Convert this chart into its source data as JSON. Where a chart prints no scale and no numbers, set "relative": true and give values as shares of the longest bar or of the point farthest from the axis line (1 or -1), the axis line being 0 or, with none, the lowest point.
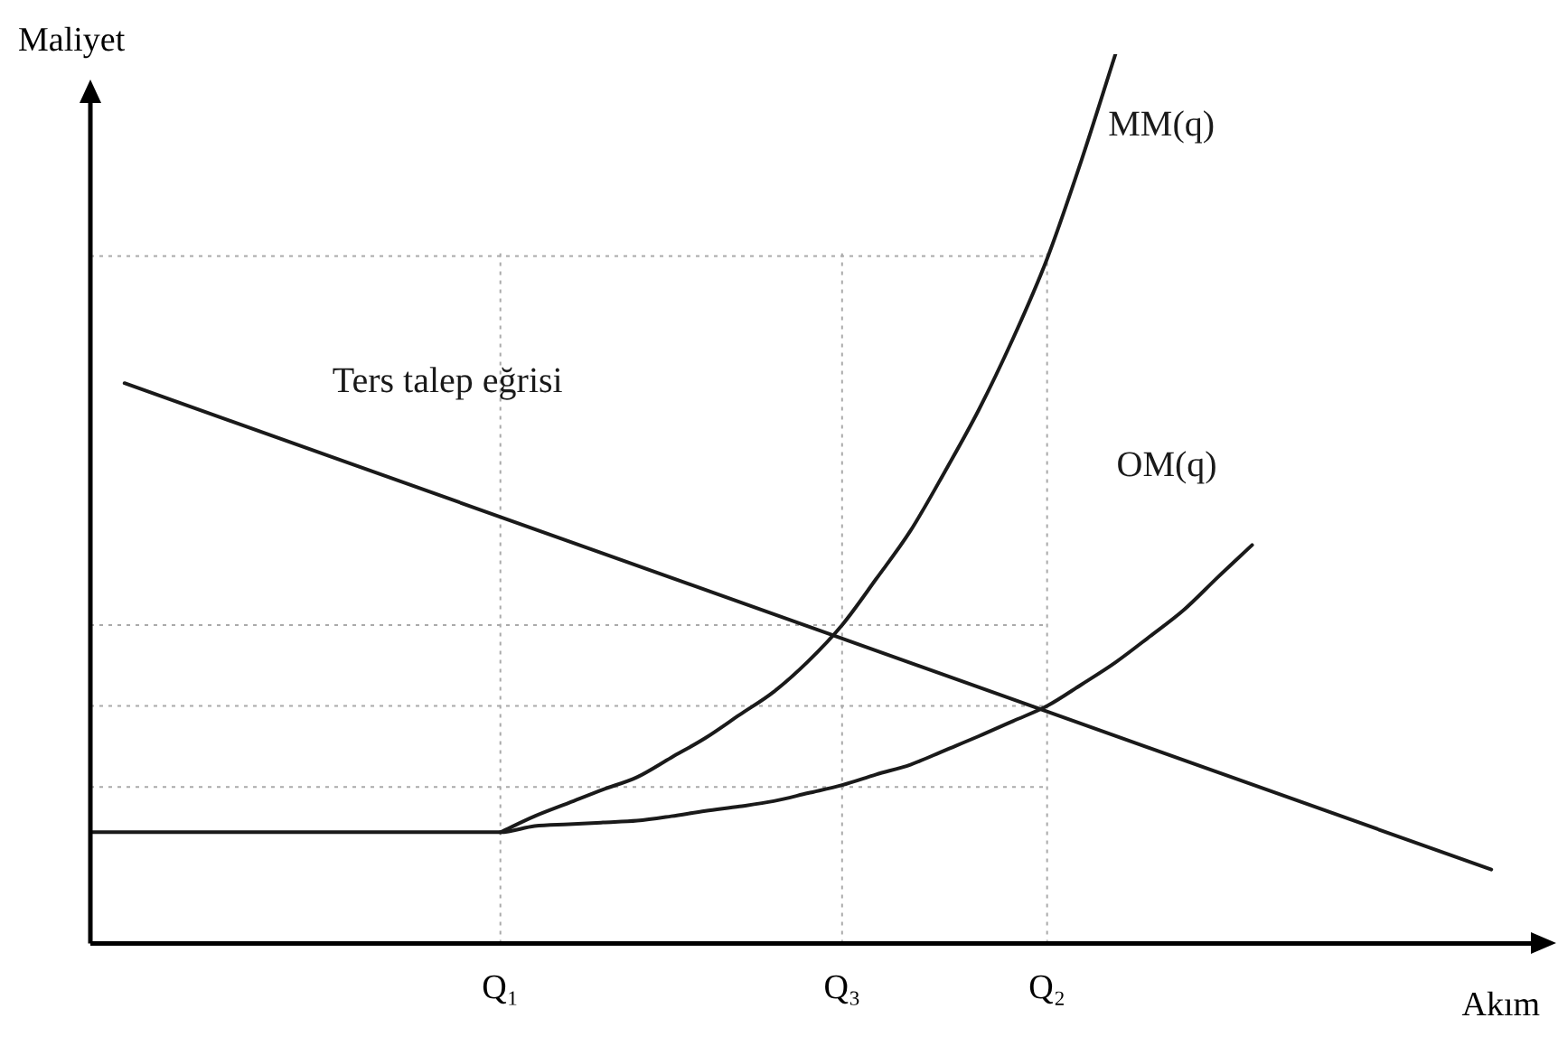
{
  "chart_data": {
    "type": "line",
    "relative": true,
    "xlabel": "Akım",
    "ylabel": "Maliyet",
    "grid": false,
    "legend": false,
    "marker": "none",
    "line_style": "solid",
    "categories": [
      null,
      null,
      null,
      null,
      null,
      null,
      null,
      null,
      null,
      null,
      null,
      null,
      "Q₁",
      null,
      null,
      null,
      null,
      null,
      null,
      null,
      null,
      null,
      "Q₃",
      null,
      null,
      null,
      null,
      null,
      "Q₂",
      null,
      null,
      null,
      null,
      null,
      null,
      null,
      null,
      null,
      null,
      null,
      null,
      null,
      null
    ],
    "series": [
      {
        "name": "MM(q)",
        "color": "#1a1a1a",
        "values": [
          null,
          null,
          null,
          null,
          null,
          null,
          null,
          null,
          null,
          null,
          null,
          null,
          0.125,
          0.143,
          0.158,
          0.173,
          0.187,
          0.209,
          0.231,
          0.257,
          0.283,
          0.317,
          0.358,
          0.41,
          0.464,
          0.53,
          0.6,
          0.68,
          0.77,
          0.88,
          1,
          null,
          null,
          null,
          null,
          null,
          null,
          null,
          null,
          null,
          null,
          null,
          null
        ]
      },
      {
        "name": "OM(q)",
        "color": "#1a1a1a",
        "values": [
          0.125,
          0.125,
          0.125,
          0.125,
          0.125,
          0.125,
          0.125,
          0.125,
          0.125,
          0.125,
          0.125,
          0.125,
          0.125,
          0.132,
          0.134,
          0.136,
          0.138,
          0.143,
          0.149,
          0.154,
          0.16,
          0.169,
          0.178,
          0.19,
          0.201,
          0.217,
          0.233,
          0.25,
          0.267,
          0.291,
          0.316,
          0.345,
          0.375,
          0.412,
          0.448,
          null,
          null,
          null,
          null,
          null,
          null,
          null,
          null
        ]
      },
      {
        "name": "Ters talep eğrisi",
        "color": "#1a1a1a",
        "values": [
          null,
          0.63,
          null,
          null,
          null,
          null,
          null,
          null,
          null,
          null,
          null,
          null,
          null,
          null,
          null,
          null,
          null,
          null,
          null,
          null,
          null,
          null,
          null,
          null,
          null,
          null,
          null,
          null,
          null,
          null,
          null,
          null,
          null,
          null,
          null,
          null,
          null,
          null,
          null,
          null,
          null,
          0.083,
          null
        ]
      }
    ],
    "ref_lines": [
      {
        "axis": "y",
        "value": 0.773,
        "color": "#aaaaaa",
        "line_style": "dotted"
      },
      {
        "axis": "y",
        "value": 0.358,
        "color": "#aaaaaa",
        "line_style": "dotted"
      },
      {
        "axis": "y",
        "value": 0.267,
        "color": "#aaaaaa",
        "line_style": "dotted"
      },
      {
        "axis": "y",
        "value": 0.176,
        "color": "#aaaaaa",
        "line_style": "dotted"
      },
      {
        "axis": "x",
        "value": "Q₁",
        "color": "#aaaaaa",
        "line_style": "dotted"
      },
      {
        "axis": "x",
        "value": "Q₃",
        "color": "#aaaaaa",
        "line_style": "dotted"
      },
      {
        "axis": "x",
        "value": "Q₂",
        "color": "#aaaaaa",
        "line_style": "dotted"
      }
    ]
  }
}
